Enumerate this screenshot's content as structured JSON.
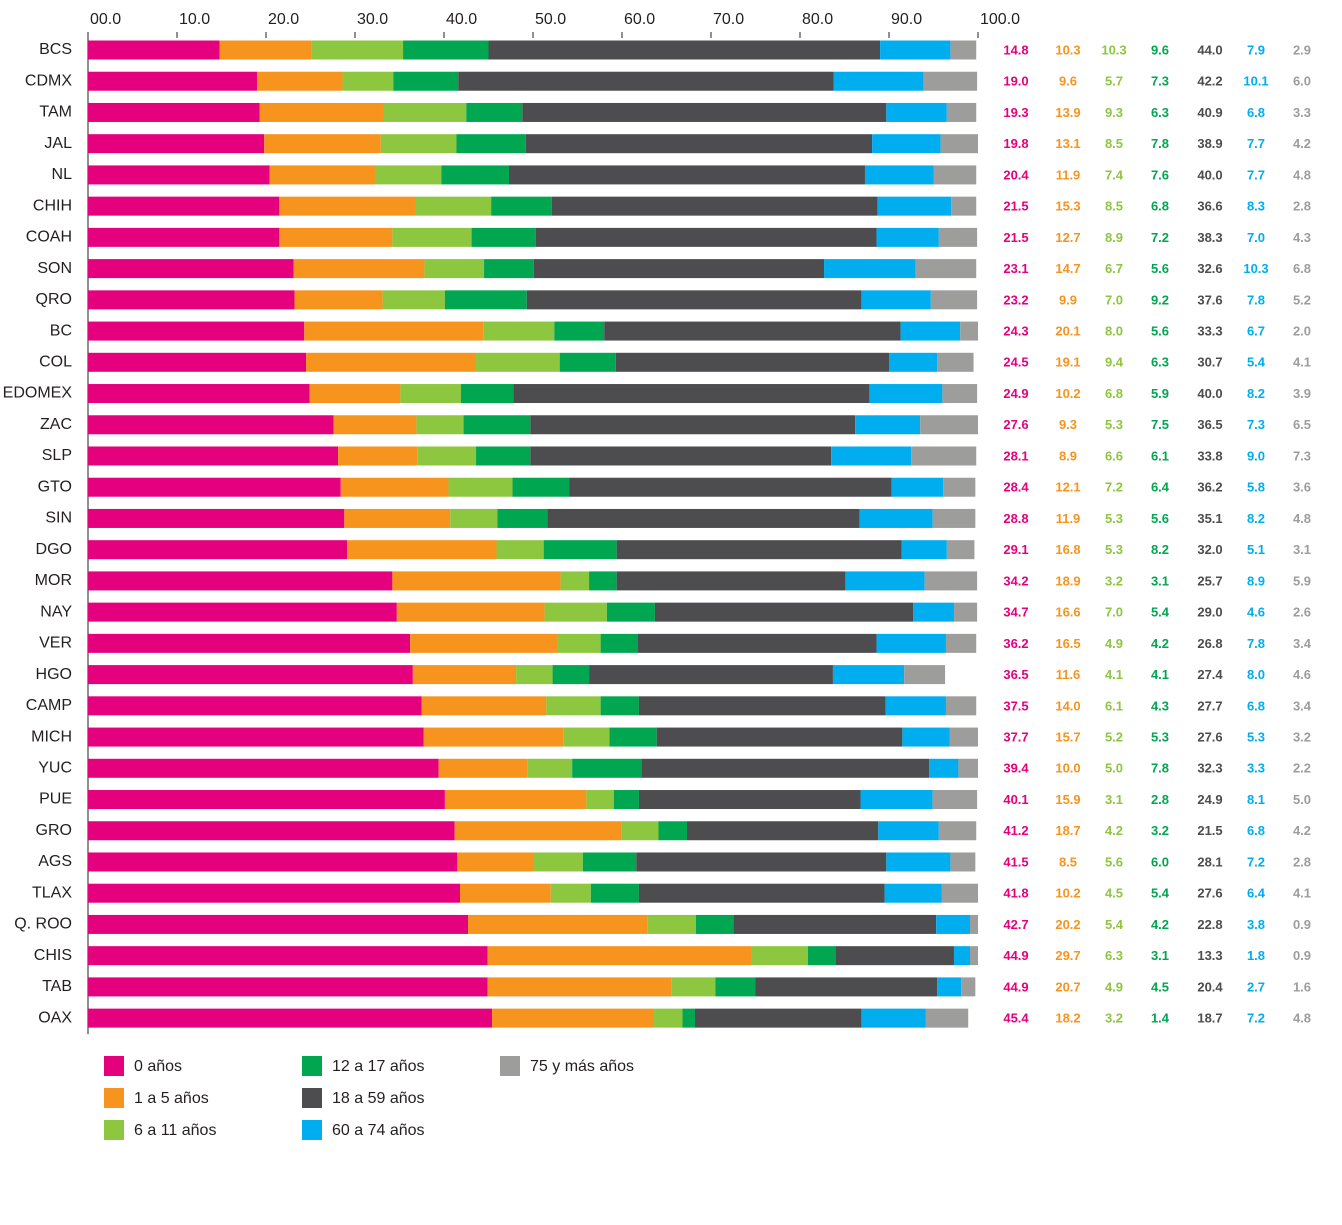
{
  "chart_data": {
    "type": "stacked-bar-horizontal",
    "categories": [
      "BCS",
      "CDMX",
      "TAM",
      "JAL",
      "NL",
      "CHIH",
      "COAH",
      "SON",
      "QRO",
      "BC",
      "COL",
      "EDOMEX",
      "ZAC",
      "SLP",
      "GTO",
      "SIN",
      "DGO",
      "MOR",
      "NAY",
      "VER",
      "HGO",
      "CAMP",
      "MICH",
      "YUC",
      "PUE",
      "GRO",
      "AGS",
      "TLAX",
      "Q. ROO",
      "CHIS",
      "TAB",
      "OAX"
    ],
    "xlim": [
      0,
      100
    ],
    "xticks": [
      {
        "value": 0,
        "label": "00.0"
      },
      {
        "value": 10,
        "label": "10.0"
      },
      {
        "value": 20,
        "label": "20.0"
      },
      {
        "value": 30,
        "label": "30.0"
      },
      {
        "value": 40,
        "label": "40.0"
      },
      {
        "value": 50,
        "label": "50.0"
      },
      {
        "value": 60,
        "label": "60.0"
      },
      {
        "value": 70,
        "label": "70.0"
      },
      {
        "value": 80,
        "label": "80.0"
      },
      {
        "value": 90,
        "label": "90.0"
      },
      {
        "value": 100,
        "label": "100.0"
      }
    ],
    "series": [
      {
        "name": "0 años",
        "color": "#e5007e",
        "label_color": "#e5007e",
        "values": [
          14.8,
          19.0,
          19.3,
          19.8,
          20.4,
          21.5,
          21.5,
          23.1,
          23.2,
          24.3,
          24.5,
          24.9,
          27.6,
          28.1,
          28.4,
          28.8,
          29.1,
          34.2,
          34.7,
          36.2,
          36.5,
          37.5,
          37.7,
          39.4,
          40.1,
          41.2,
          41.5,
          41.8,
          42.7,
          44.9,
          44.9,
          45.4
        ],
        "value_labels": [
          "14.8",
          "19.0",
          "19.3",
          "19.8",
          "20.4",
          "21.5",
          "21.5",
          "23.1",
          "23.2",
          "24.3",
          "24.5",
          "24.9",
          "27.6",
          "28.1",
          "28.4",
          "28.8",
          "29.1",
          "34.2",
          "34.7",
          "36.2",
          "36.5",
          "37.5",
          "37.7",
          "39.4",
          "40.1",
          "41.2",
          "41.5",
          "41.8",
          "42.7",
          "44.9",
          "44.9",
          "45.4"
        ]
      },
      {
        "name": "1 a 5 años",
        "color": "#f7941d",
        "label_color": "#f7941d",
        "values": [
          10.3,
          9.6,
          13.9,
          13.1,
          11.9,
          15.3,
          12.7,
          14.7,
          9.9,
          20.1,
          19.1,
          10.2,
          9.3,
          8.9,
          12.1,
          11.9,
          16.8,
          18.9,
          16.6,
          16.5,
          11.6,
          14.0,
          15.7,
          10.0,
          15.9,
          18.7,
          8.5,
          10.2,
          20.2,
          29.7,
          20.7,
          18.2
        ],
        "value_labels": [
          "10.3",
          "9.6",
          "13.9",
          "13.1",
          "11.9",
          "15.3",
          "12.7",
          "14.7",
          "9.9",
          "20.1",
          "19.1",
          "10.2",
          "9.3",
          "8.9",
          "12.1",
          "11.9",
          "16.8",
          "18.9",
          "16.6",
          "16.5",
          "11.6",
          "14.0",
          "15.7",
          "10.0",
          "15.9",
          "18.7",
          "8.5",
          "10.2",
          "20.2",
          "29.7",
          "20.7",
          "18.2"
        ]
      },
      {
        "name": "6 a 11 años",
        "color": "#8dc63f",
        "label_color": "#8dc63f",
        "values": [
          10.3,
          5.7,
          9.3,
          8.5,
          7.4,
          8.5,
          8.9,
          6.7,
          7.0,
          8.0,
          9.4,
          6.8,
          5.3,
          6.6,
          7.2,
          5.3,
          5.3,
          3.2,
          7.0,
          4.9,
          4.1,
          6.1,
          5.2,
          5.0,
          3.1,
          4.2,
          5.6,
          4.5,
          5.4,
          6.3,
          4.9,
          3.2
        ],
        "value_labels": [
          "10.3",
          "5.7",
          "9.3",
          "8.5",
          "7.4",
          "8.5",
          "8.9",
          "6.7",
          "7.0",
          "8.0",
          "9.4",
          "6.8",
          "5.3",
          "6.6",
          "7.2",
          "5.3",
          "5.3",
          "3.2",
          "7.0",
          "4.9",
          "4.1",
          "6.1",
          "5.2",
          "5.0",
          "3.1",
          "4.2",
          "5.6",
          "4.5",
          "5.4",
          "6.3",
          "4.9",
          "3.2"
        ]
      },
      {
        "name": "12 a 17 años",
        "color": "#00a650",
        "label_color": "#00a650",
        "values": [
          9.6,
          7.3,
          6.3,
          7.8,
          7.6,
          6.8,
          7.2,
          5.6,
          9.2,
          5.6,
          6.3,
          5.9,
          7.5,
          6.1,
          6.4,
          5.6,
          8.2,
          3.1,
          5.4,
          4.2,
          4.1,
          4.3,
          5.3,
          7.8,
          2.8,
          3.2,
          6.0,
          5.4,
          4.2,
          3.1,
          4.5,
          1.4
        ],
        "value_labels": [
          "9.6",
          "7.3",
          "6.3",
          "7.8",
          "7.6",
          "6.8",
          "7.2",
          "5.6",
          "9.2",
          "5.6",
          "6.3",
          "5.9",
          "7.5",
          "6.1",
          "6.4",
          "5.6",
          "8.2",
          "3.1",
          "5.4",
          "4.2",
          "4.1",
          "4.3",
          "5.3",
          "7.8",
          "2.8",
          "3.2",
          "6.0",
          "5.4",
          "4.2",
          "3.1",
          "4.5",
          "1.4"
        ]
      },
      {
        "name": "18 a 59 años",
        "color": "#4d4d4f",
        "label_color": "#4d4d4f",
        "values": [
          44.0,
          42.2,
          40.9,
          38.9,
          40.0,
          36.6,
          38.3,
          32.6,
          37.6,
          33.3,
          30.7,
          40.0,
          36.5,
          33.8,
          36.2,
          35.1,
          32.0,
          25.7,
          29.0,
          26.8,
          27.4,
          27.7,
          27.6,
          32.3,
          24.9,
          21.5,
          28.1,
          27.6,
          22.8,
          13.3,
          20.4,
          18.7
        ],
        "value_labels": [
          "44.0",
          "42.2",
          "40.9",
          "38.9",
          "40.0",
          "36.6",
          "38.3",
          "32.6",
          "37.6",
          "33.3",
          "30.7",
          "40.0",
          "36.5",
          "33.8",
          "36.2",
          "35.1",
          "32.0",
          "25.7",
          "29.0",
          "26.8",
          "27.4",
          "27.7",
          "27.6",
          "32.3",
          "24.9",
          "21.5",
          "28.1",
          "27.6",
          "22.8",
          "13.3",
          "20.4",
          "18.7"
        ]
      },
      {
        "name": "60 a 74 años",
        "color": "#00aeef",
        "label_color": "#00aeef",
        "values": [
          7.9,
          10.1,
          6.8,
          7.7,
          7.7,
          8.3,
          7.0,
          10.3,
          7.8,
          6.7,
          5.4,
          8.2,
          7.3,
          9.0,
          5.8,
          8.2,
          5.1,
          8.9,
          4.6,
          7.8,
          8.0,
          6.8,
          5.3,
          3.3,
          8.1,
          6.8,
          7.2,
          6.4,
          3.8,
          1.8,
          2.7,
          7.2
        ],
        "value_labels": [
          "7.9",
          "10.1",
          "6.8",
          "7.7",
          "7.7",
          "8.3",
          "7.0",
          "10.3",
          "7.8",
          "6.7",
          "5.4",
          "8.2",
          "7.3",
          "9.0",
          "5.8",
          "8.2",
          "5.1",
          "8.9",
          "4.6",
          "7.8",
          "8.0",
          "6.8",
          "5.3",
          "3.3",
          "8.1",
          "6.8",
          "7.2",
          "6.4",
          "3.8",
          "1.8",
          "2.7",
          "7.2"
        ]
      },
      {
        "name": "75 y más años",
        "color": "#9d9d9c",
        "label_color": "#9d9d9c",
        "values": [
          2.9,
          6.0,
          3.3,
          4.2,
          4.8,
          2.8,
          4.3,
          6.8,
          5.2,
          2.0,
          4.1,
          3.9,
          6.5,
          7.3,
          3.6,
          4.8,
          3.1,
          5.9,
          2.6,
          3.4,
          4.6,
          3.4,
          3.2,
          2.2,
          5.0,
          4.2,
          2.8,
          4.1,
          0.9,
          0.9,
          1.6,
          4.8
        ],
        "value_labels": [
          "2.9",
          "6.0",
          "3.3",
          "4.2",
          "4.8",
          "2.8",
          "4.3",
          "6.8",
          "5.2",
          "2.0",
          "4.1",
          "3.9",
          "6.5",
          "7.3",
          "3.6",
          "4.8",
          "3.1",
          "5.9",
          "2.6",
          "3.4",
          "4.6",
          "3.4",
          "3.2",
          "2.2",
          "5.0",
          "4.2",
          "2.8",
          "4.1",
          "0.9",
          "0.9",
          "1.6",
          "4.8"
        ]
      }
    ]
  }
}
